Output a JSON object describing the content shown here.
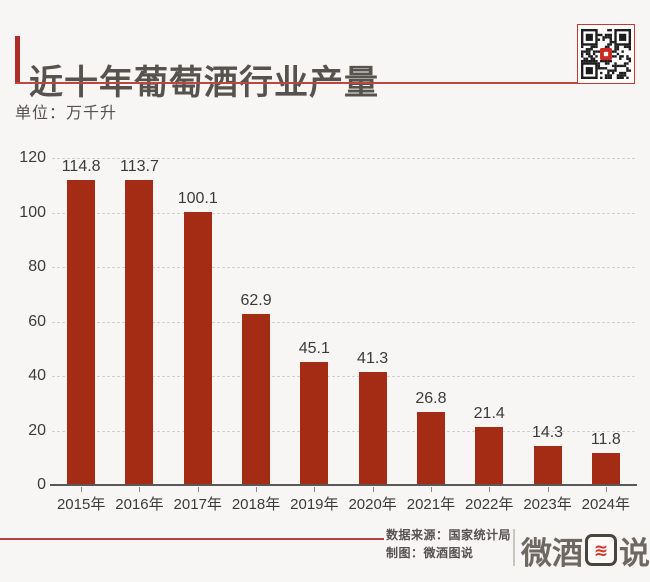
{
  "page": {
    "background": "#f7f6f4"
  },
  "header": {
    "title": "近十年葡萄酒行业产量",
    "subtitle": "单位：万千升",
    "accent_color": "#ae2f27",
    "underline_color": "#ba4740"
  },
  "qr": {
    "border_color": "#c43a31",
    "center_color": "#cc2a20"
  },
  "chart_data": {
    "type": "bar",
    "title": "近十年葡萄酒行业产量",
    "unit_label": "单位：万千升",
    "categories": [
      "2015年",
      "2016年",
      "2017年",
      "2018年",
      "2019年",
      "2020年",
      "2021年",
      "2022年",
      "2023年",
      "2024年"
    ],
    "values": [
      114.8,
      113.7,
      100.1,
      62.9,
      45.1,
      41.3,
      26.8,
      21.4,
      14.3,
      11.8
    ],
    "xlabel": "",
    "ylabel": "",
    "ylim": [
      0,
      120
    ],
    "yticks": [
      0,
      20,
      40,
      60,
      80,
      100,
      120
    ],
    "grid": "dashed-horizontal",
    "legend": "none",
    "value_labels": true,
    "bar_color": "#a52c14"
  },
  "footer": {
    "source_line": "数据来源：国家统计局",
    "credit_line": "制图：微酒图说",
    "line_color": "#b2423c",
    "logo": {
      "left": "微酒",
      "wave_glyph": "≋",
      "right": "说",
      "red": "#d63426"
    }
  }
}
